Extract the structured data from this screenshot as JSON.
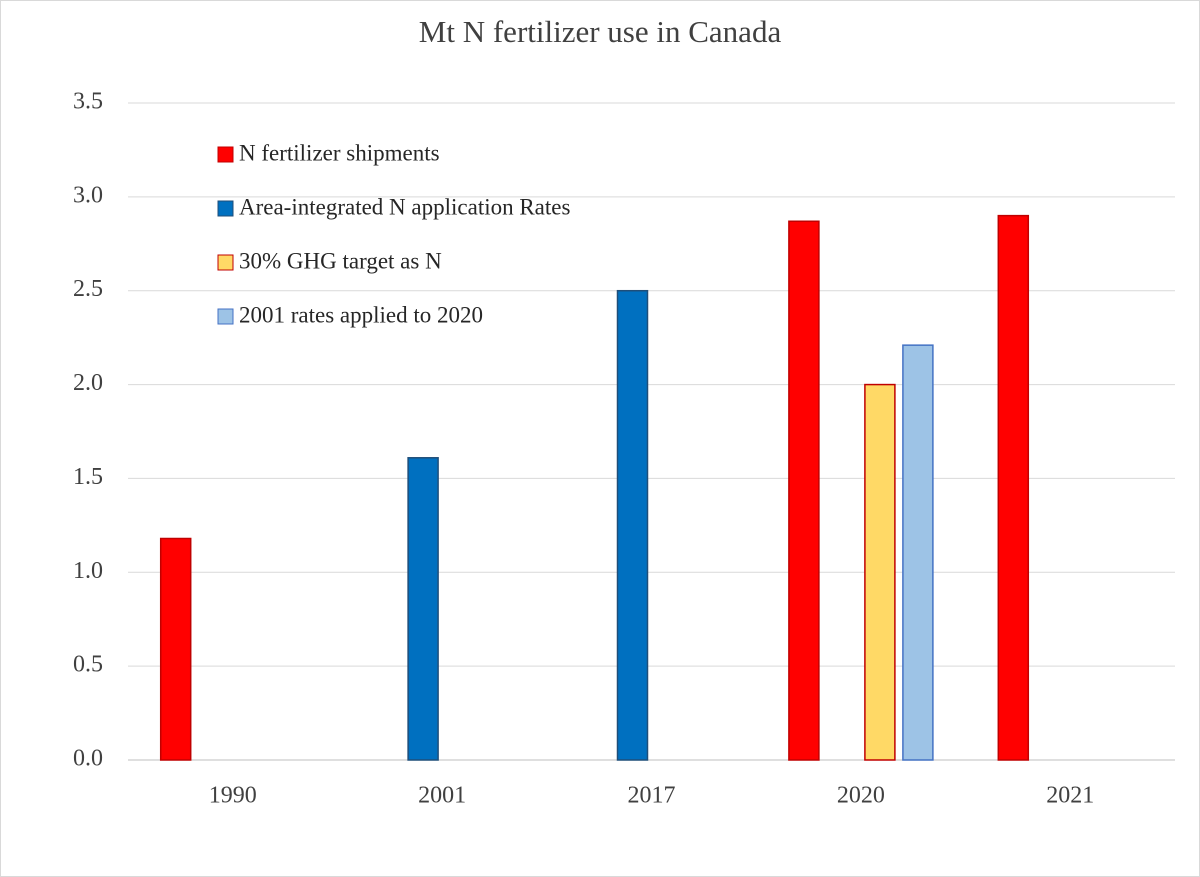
{
  "chart_data": {
    "type": "bar",
    "title": "Mt N fertilizer use in Canada",
    "categories": [
      "1990",
      "2001",
      "2017",
      "2020",
      "2021"
    ],
    "series": [
      {
        "name": "N fertilizer shipments",
        "color": "#ff0000",
        "edgecolor": "#c00000",
        "values": [
          1.18,
          0,
          0,
          2.87,
          2.9
        ]
      },
      {
        "name": "Area-integrated N application Rates",
        "color": "#0070c0",
        "edgecolor": "#1f4e79",
        "values": [
          0,
          1.61,
          2.5,
          0,
          0
        ]
      },
      {
        "name": "30% GHG target as N",
        "color": "#ffd966",
        "edgecolor": "#c00000",
        "values": [
          0,
          0,
          0,
          2.0,
          0
        ]
      },
      {
        "name": "2001 rates applied to 2020",
        "color": "#9dc3e6",
        "edgecolor": "#4472c4",
        "values": [
          0,
          0,
          0,
          2.21,
          0
        ]
      }
    ],
    "ylim": [
      0,
      3.5
    ],
    "yticks": [
      {
        "value": 0,
        "label": "0.0"
      },
      0.5,
      {
        "value": 1,
        "label": "1.0"
      },
      1.5,
      {
        "value": 2,
        "label": "2.0"
      },
      2.5,
      {
        "value": 3,
        "label": "3.0"
      },
      3.5
    ],
    "grid": true,
    "legend": "upper left"
  }
}
